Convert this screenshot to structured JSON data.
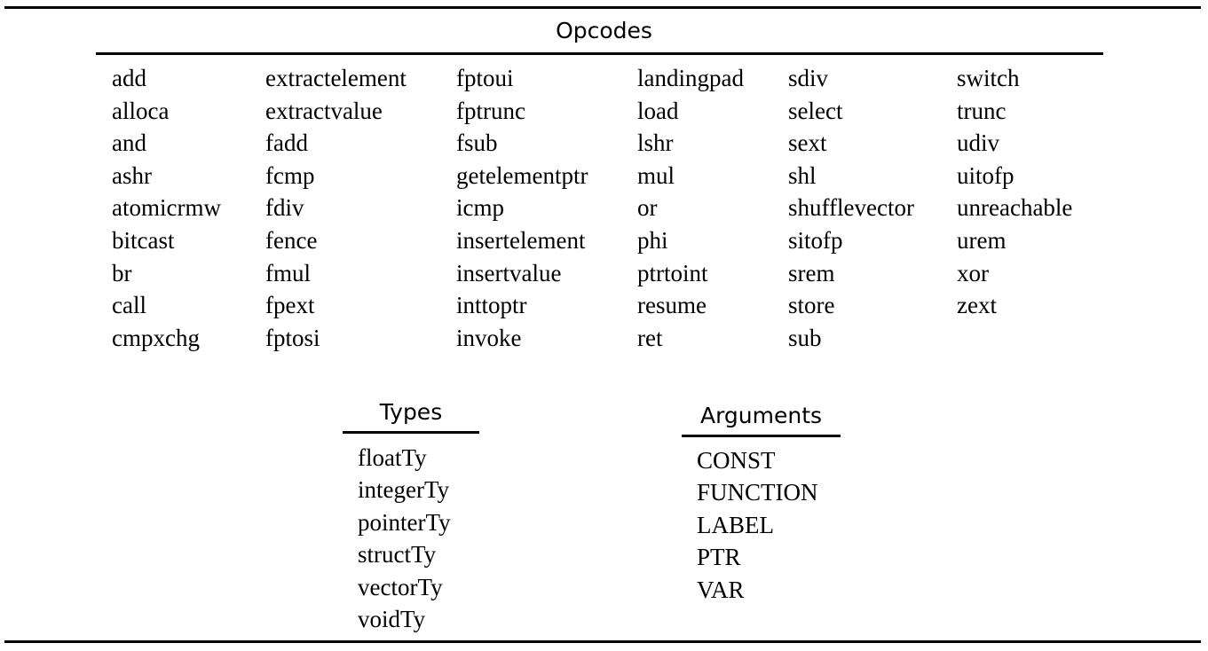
{
  "opcodes": {
    "header": "Opcodes",
    "columns": [
      [
        "add",
        "alloca",
        "and",
        "ashr",
        "atomicrmw",
        "bitcast",
        "br",
        "call",
        "cmpxchg"
      ],
      [
        "extractelement",
        "extractvalue",
        "fadd",
        "fcmp",
        "fdiv",
        "fence",
        "fmul",
        "fpext",
        "fptosi"
      ],
      [
        "fptoui",
        "fptrunc",
        "fsub",
        "getelementptr",
        "icmp",
        "insertelement",
        "insertvalue",
        "inttoptr",
        "invoke"
      ],
      [
        "landingpad",
        "load",
        "lshr",
        "mul",
        "or",
        "phi",
        "ptrtoint",
        "resume",
        "ret"
      ],
      [
        "sdiv",
        "select",
        "sext",
        "shl",
        "shufflevector",
        "sitofp",
        "srem",
        "store",
        "sub"
      ],
      [
        "switch",
        "trunc",
        "udiv",
        "uitofp",
        "unreachable",
        "urem",
        "xor",
        "zext"
      ]
    ]
  },
  "types": {
    "header": "Types",
    "items": [
      "floatTy",
      "integerTy",
      "pointerTy",
      "structTy",
      "vectorTy",
      "voidTy"
    ]
  },
  "arguments": {
    "header": "Arguments",
    "items": [
      "CONST",
      "FUNCTION",
      "LABEL",
      "PTR",
      "VAR"
    ]
  }
}
